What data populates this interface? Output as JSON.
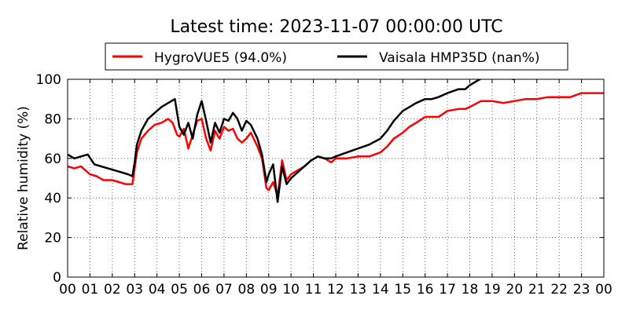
{
  "chart_data": {
    "type": "line",
    "title": "Latest time: 2023-11-07 00:00:00 UTC",
    "xlabel": "",
    "ylabel": "Relative humidity (%)",
    "xlim": [
      0,
      24
    ],
    "ylim": [
      0,
      100
    ],
    "grid": true,
    "legend_placement": "top-center",
    "x_tick_labels": [
      "00",
      "01",
      "02",
      "03",
      "04",
      "05",
      "06",
      "07",
      "08",
      "09",
      "10",
      "11",
      "12",
      "13",
      "14",
      "15",
      "16",
      "17",
      "18",
      "19",
      "20",
      "21",
      "22",
      "23",
      "00"
    ],
    "y_ticks": [
      0,
      20,
      40,
      60,
      80,
      100
    ],
    "series": [
      {
        "name": "HygroVUE5 (94.0%)",
        "color": "#ff0000",
        "x": [
          0,
          0.3,
          0.6,
          1.0,
          1.3,
          1.6,
          2.0,
          2.3,
          2.6,
          2.9,
          3.0,
          3.1,
          3.3,
          3.6,
          3.9,
          4.2,
          4.5,
          4.7,
          4.9,
          5.0,
          5.2,
          5.4,
          5.6,
          5.8,
          6.0,
          6.2,
          6.4,
          6.6,
          6.8,
          7.0,
          7.2,
          7.4,
          7.6,
          7.8,
          8.0,
          8.2,
          8.5,
          8.7,
          8.9,
          9.0,
          9.2,
          9.4,
          9.6,
          9.8,
          10.0,
          10.3,
          10.6,
          10.9,
          11.2,
          11.5,
          11.8,
          12.0,
          12.5,
          13.0,
          13.5,
          14.0,
          14.3,
          14.6,
          15.0,
          15.3,
          15.6,
          16.0,
          16.3,
          16.6,
          17.0,
          17.5,
          17.8,
          18.0,
          18.5,
          19.0,
          19.5,
          20.0,
          20.5,
          21.0,
          21.5,
          22.0,
          22.5,
          23.0,
          23.5,
          24.0
        ],
        "values": [
          56,
          55,
          56,
          52,
          51,
          49,
          49,
          48,
          47,
          47,
          55,
          63,
          70,
          74,
          77,
          78,
          80,
          78,
          72,
          71,
          75,
          65,
          72,
          79,
          80,
          70,
          64,
          74,
          70,
          76,
          74,
          75,
          70,
          68,
          70,
          73,
          66,
          60,
          45,
          44,
          48,
          41,
          59,
          49,
          52,
          54,
          56,
          59,
          61,
          60,
          58,
          60,
          60,
          61,
          61,
          63,
          66,
          70,
          73,
          76,
          78,
          81,
          81,
          81,
          84,
          85,
          85,
          86,
          89,
          89,
          88,
          89,
          90,
          90,
          91,
          91,
          91,
          93,
          93,
          93
        ]
      },
      {
        "name": "Vaisala HMP35D (nan%)",
        "color": "#000000",
        "x": [
          0,
          0.3,
          0.6,
          0.9,
          1.2,
          1.5,
          1.8,
          2.1,
          2.4,
          2.7,
          2.9,
          3.0,
          3.1,
          3.3,
          3.6,
          3.9,
          4.2,
          4.5,
          4.8,
          5.0,
          5.2,
          5.4,
          5.6,
          5.8,
          6.0,
          6.2,
          6.4,
          6.6,
          6.8,
          7.0,
          7.2,
          7.4,
          7.6,
          7.8,
          8.0,
          8.2,
          8.5,
          8.7,
          8.9,
          9.0,
          9.2,
          9.4,
          9.6,
          9.8,
          10.0,
          10.3,
          10.6,
          10.9,
          11.2,
          11.5,
          11.8,
          12.0,
          12.5,
          13.0,
          13.5,
          14.0,
          14.3,
          14.6,
          15.0,
          15.3,
          15.6,
          16.0,
          16.3,
          16.6,
          17.0,
          17.5,
          17.8,
          18.0,
          18.3,
          18.6,
          19.0,
          19.5,
          20.0
        ],
        "values": [
          62,
          60,
          61,
          62,
          57,
          56,
          55,
          54,
          53,
          52,
          51,
          58,
          67,
          74,
          80,
          83,
          86,
          88,
          90,
          76,
          72,
          78,
          70,
          82,
          89,
          79,
          68,
          78,
          73,
          80,
          79,
          83,
          80,
          74,
          79,
          77,
          70,
          62,
          48,
          52,
          57,
          38,
          56,
          47,
          50,
          53,
          56,
          59,
          61,
          60,
          60,
          61,
          63,
          65,
          67,
          70,
          74,
          79,
          84,
          86,
          88,
          90,
          90,
          91,
          93,
          95,
          95,
          97,
          99,
          101,
          102,
          101,
          100
        ]
      }
    ]
  }
}
